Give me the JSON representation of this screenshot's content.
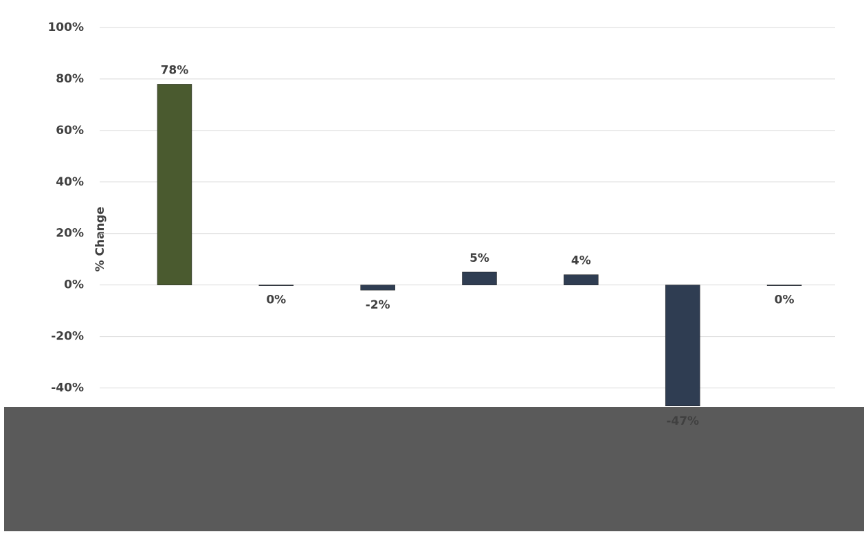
{
  "chart_data": {
    "type": "bar",
    "y_label": "% Change",
    "categories": [
      null,
      null,
      null,
      null,
      null,
      null,
      null
    ],
    "values": [
      78,
      0,
      -2,
      5,
      4,
      -47,
      0
    ],
    "value_labels": [
      "78%",
      "0%",
      "-2%",
      "5%",
      "4%",
      "-47%",
      "0%"
    ],
    "colors": [
      "#4a5a2f",
      "#2f3d52",
      "#2f3d52",
      "#2f3d52",
      "#2f3d52",
      "#2f3d52",
      "#2f3d52"
    ],
    "ylim": [
      -50,
      100
    ],
    "yticks": [
      {
        "value": -40,
        "label": "-40%"
      },
      {
        "value": -20,
        "label": "-20%"
      },
      {
        "value": 0,
        "label": "0%"
      },
      {
        "value": 20,
        "label": "20%"
      },
      {
        "value": 40,
        "label": "40%"
      },
      {
        "value": 60,
        "label": "60%"
      },
      {
        "value": 80,
        "label": "80%"
      },
      {
        "value": 100,
        "label": "100%"
      }
    ],
    "grid": true
  }
}
